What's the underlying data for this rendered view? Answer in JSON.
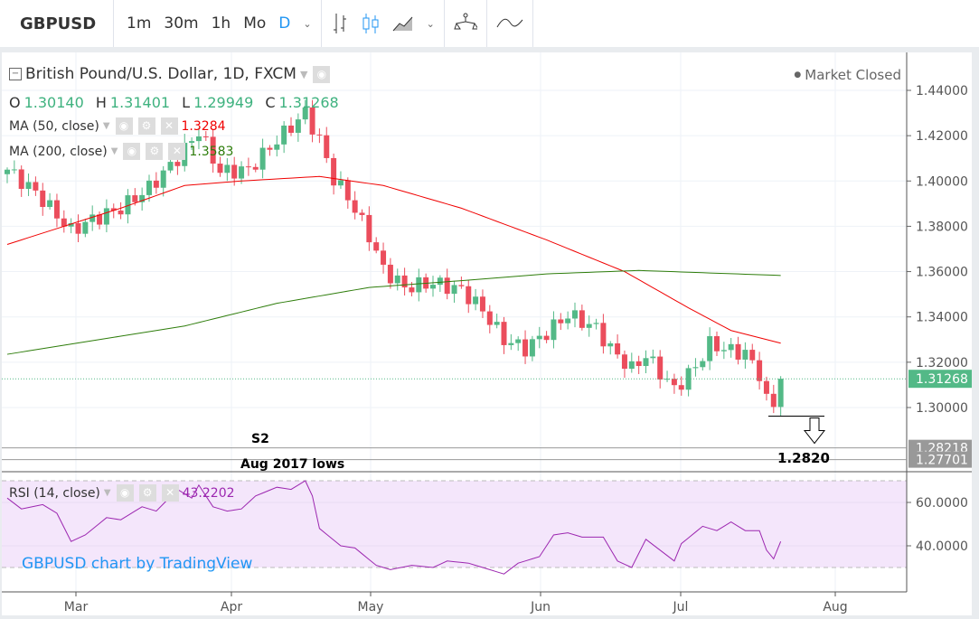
{
  "toolbar": {
    "symbol": "GBPUSD",
    "intervals": [
      "1m",
      "30m",
      "1h",
      "Mo",
      "D"
    ],
    "active_interval": "D",
    "accent": "#2196f3"
  },
  "legend": {
    "title": "British Pound/U.S. Dollar, 1D, FXCM",
    "market_status": "Market Closed",
    "ohlc": {
      "o_label": "O",
      "o": "1.30140",
      "h_label": "H",
      "h": "1.31401",
      "l_label": "L",
      "l": "1.29949",
      "c_label": "C",
      "c": "1.31268"
    },
    "ma50": {
      "label": "MA (50, close)",
      "value": "1.3284",
      "color": "#f00000"
    },
    "ma200": {
      "label": "MA (200, close)",
      "value": "1.3583",
      "color": "#2e7d0b"
    },
    "rsi": {
      "label": "RSI (14, close)",
      "value": "43.2202",
      "color": "#9c27b0"
    }
  },
  "watermark": "GBPUSD chart by TradingView",
  "annotations": {
    "s2": "S2",
    "aug_lows": "Aug 2017 lows",
    "target": "1.2820"
  },
  "chart_data": {
    "type": "candlestick",
    "price_axis": {
      "ticks": [
        "1.44000",
        "1.42000",
        "1.40000",
        "1.38000",
        "1.36000",
        "1.34000",
        "1.32000",
        "1.30000"
      ],
      "range": [
        1.2745,
        1.4475
      ]
    },
    "price_labels": {
      "last": "1.31268",
      "s2": "1.28218",
      "aug_lows": "1.27701"
    },
    "levels": {
      "last": 1.31268,
      "s2": 1.28218,
      "aug_lows": 1.27701,
      "target": 1.282,
      "break": 1.2962
    },
    "x_labels": [
      "Mar",
      "Apr",
      "May",
      "Jun",
      "Jul",
      "Aug"
    ],
    "bars": 110,
    "close_path": [
      [
        0,
        1.405
      ],
      [
        4,
        1.395
      ],
      [
        9,
        1.378
      ],
      [
        12,
        1.383
      ],
      [
        16,
        1.388
      ],
      [
        20,
        1.397
      ],
      [
        24,
        1.41
      ],
      [
        27,
        1.422
      ],
      [
        30,
        1.404
      ],
      [
        34,
        1.405
      ],
      [
        38,
        1.418
      ],
      [
        42,
        1.43
      ],
      [
        44,
        1.418
      ],
      [
        46,
        1.401
      ],
      [
        48,
        1.393
      ],
      [
        51,
        1.376
      ],
      [
        53,
        1.361
      ],
      [
        56,
        1.353
      ],
      [
        60,
        1.355
      ],
      [
        64,
        1.352
      ],
      [
        67,
        1.343
      ],
      [
        70,
        1.33
      ],
      [
        73,
        1.326
      ],
      [
        76,
        1.333
      ],
      [
        79,
        1.341
      ],
      [
        83,
        1.335
      ],
      [
        85,
        1.326
      ],
      [
        88,
        1.317
      ],
      [
        90,
        1.323
      ],
      [
        94,
        1.308
      ],
      [
        97,
        1.318
      ],
      [
        99,
        1.328
      ],
      [
        102,
        1.325
      ],
      [
        104,
        1.324
      ],
      [
        106,
        1.315
      ],
      [
        107,
        1.303
      ],
      [
        108,
        1.301
      ],
      [
        109,
        1.3127
      ]
    ],
    "ma50_path": [
      [
        0,
        1.372
      ],
      [
        16,
        1.388
      ],
      [
        25,
        1.398
      ],
      [
        33,
        1.4
      ],
      [
        44,
        1.402
      ],
      [
        53,
        1.398
      ],
      [
        64,
        1.388
      ],
      [
        76,
        1.374
      ],
      [
        87,
        1.36
      ],
      [
        96,
        1.344
      ],
      [
        102,
        1.334
      ],
      [
        109,
        1.3284
      ]
    ],
    "ma200_path": [
      [
        0,
        1.3235
      ],
      [
        25,
        1.336
      ],
      [
        38,
        1.346
      ],
      [
        51,
        1.353
      ],
      [
        64,
        1.356
      ],
      [
        76,
        1.359
      ],
      [
        89,
        1.3605
      ],
      [
        109,
        1.3583
      ]
    ],
    "rsi_axis": {
      "ticks": [
        "60.0000",
        "40.0000"
      ],
      "bands": [
        70,
        30
      ]
    },
    "rsi_path": [
      [
        0,
        62
      ],
      [
        2,
        57
      ],
      [
        5,
        59
      ],
      [
        7,
        55
      ],
      [
        9,
        42
      ],
      [
        11,
        45
      ],
      [
        14,
        53
      ],
      [
        16,
        52
      ],
      [
        19,
        58
      ],
      [
        21,
        56
      ],
      [
        24,
        66
      ],
      [
        26,
        62
      ],
      [
        27,
        68
      ],
      [
        29,
        58
      ],
      [
        31,
        56
      ],
      [
        33,
        57
      ],
      [
        35,
        63
      ],
      [
        38,
        67
      ],
      [
        40,
        66
      ],
      [
        42,
        70
      ],
      [
        43,
        63
      ],
      [
        44,
        48
      ],
      [
        47,
        40
      ],
      [
        49,
        39
      ],
      [
        52,
        31
      ],
      [
        54,
        29
      ],
      [
        57,
        31
      ],
      [
        60,
        30
      ],
      [
        62,
        33
      ],
      [
        65,
        32
      ],
      [
        67,
        30
      ],
      [
        70,
        27
      ],
      [
        72,
        32
      ],
      [
        75,
        35
      ],
      [
        77,
        45
      ],
      [
        79,
        46
      ],
      [
        81,
        44
      ],
      [
        84,
        44
      ],
      [
        86,
        33
      ],
      [
        88,
        30
      ],
      [
        90,
        43
      ],
      [
        92,
        38
      ],
      [
        94,
        33
      ],
      [
        95,
        41
      ],
      [
        98,
        49
      ],
      [
        100,
        47
      ],
      [
        102,
        51
      ],
      [
        104,
        47
      ],
      [
        106,
        47
      ],
      [
        107,
        38
      ],
      [
        108,
        34
      ],
      [
        109,
        42
      ]
    ]
  }
}
